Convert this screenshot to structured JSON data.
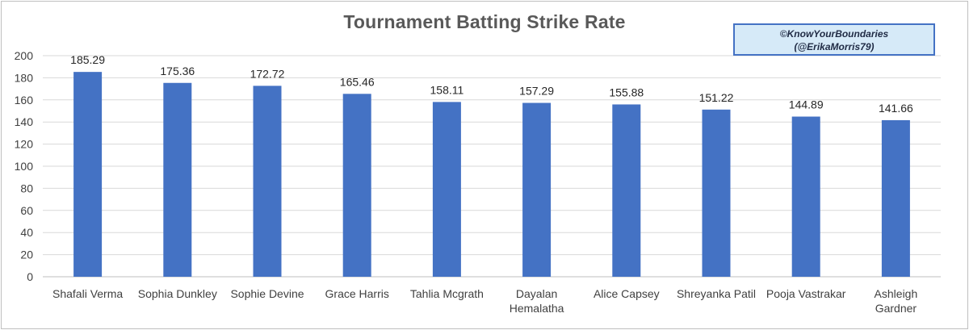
{
  "chart_data": {
    "type": "bar",
    "title": "Tournament Batting Strike Rate",
    "xlabel": "",
    "ylabel": "",
    "categories": [
      [
        "Shafali Verma"
      ],
      [
        "Sophia Dunkley"
      ],
      [
        "Sophie Devine"
      ],
      [
        "Grace Harris"
      ],
      [
        "Tahlia Mcgrath"
      ],
      [
        "Dayalan",
        "Hemalatha"
      ],
      [
        "Alice Capsey"
      ],
      [
        "Shreyanka Patil"
      ],
      [
        "Pooja Vastrakar"
      ],
      [
        "Ashleigh",
        "Gardner"
      ]
    ],
    "values": [
      185.29,
      175.36,
      172.72,
      165.46,
      158.11,
      157.29,
      155.88,
      151.22,
      144.89,
      141.66
    ],
    "data_labels": [
      "185.29",
      "175.36",
      "172.72",
      "165.46",
      "158.11",
      "157.29",
      "155.88",
      "151.22",
      "144.89",
      "141.66"
    ],
    "ylim": [
      0,
      200
    ],
    "yticks": [
      0,
      20,
      40,
      60,
      80,
      100,
      120,
      140,
      160,
      180,
      200
    ],
    "grid": true,
    "legend": "none",
    "bar_color": "#4472c4",
    "grid_color": "#d9d9d9"
  },
  "credit": {
    "line1": "©KnowYourBoundaries",
    "line2": "(@ErikaMorris79)"
  }
}
